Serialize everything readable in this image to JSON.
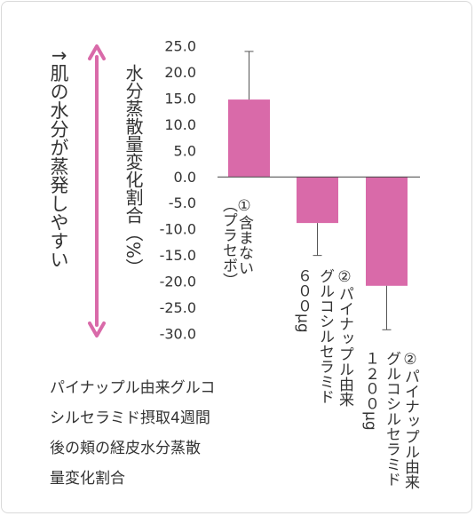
{
  "chart_data": {
    "type": "bar",
    "categories": [
      "①含まない（プラセボ）",
      "②パイナップル由来グルコシルセラミド600μg",
      "②パイナップル由来グルコシルセラミド1200μg"
    ],
    "category_lines": [
      [
        "①含まない",
        "（プラセボ）"
      ],
      [
        "②パイナップル由来",
        "グルコシルセラミド",
        "６００μg"
      ],
      [
        "②パイナップル由来",
        "グルコシルセラミド",
        "１２００μg"
      ]
    ],
    "values": [
      14.8,
      -8.8,
      -20.8
    ],
    "errors_upper": [
      24.0,
      null,
      null
    ],
    "errors_lower": [
      null,
      -15.0,
      -29.2
    ],
    "ylim": [
      -30,
      25
    ],
    "yticks": [
      "25.0",
      "20.0",
      "15.0",
      "10.0",
      "5.0",
      "0.0",
      "-5.0",
      "-10.0",
      "-15.0",
      "-20.0",
      "-25.0",
      "-30.0"
    ],
    "ylabel": "水分蒸散量変化割合（%）",
    "annotation": "↑肌の水分が蒸発しやすい",
    "bar_color": "#d96aa9",
    "arrow_color": "#d96aa9",
    "grid": false
  },
  "caption": [
    "パイナップル由来グルコ",
    "シルセラミド摂取4週間",
    "後の頬の経皮水分蒸散",
    "量変化割合"
  ]
}
